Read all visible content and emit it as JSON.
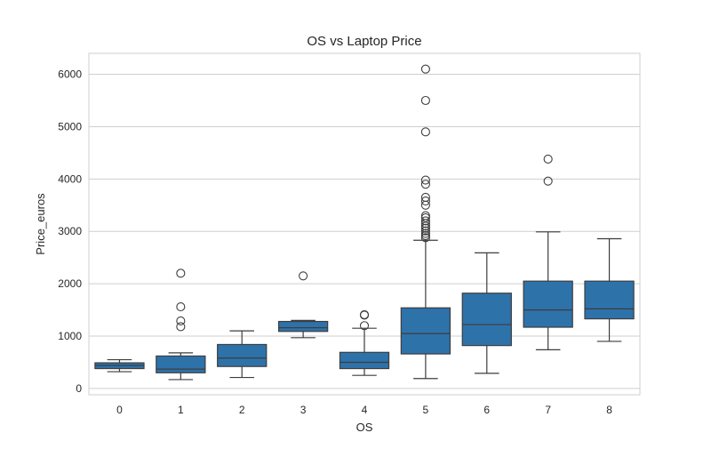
{
  "chart_data": {
    "type": "box",
    "title": "OS vs Laptop Price",
    "xlabel": "OS",
    "ylabel": "Price_euros",
    "categories": [
      "0",
      "1",
      "2",
      "3",
      "4",
      "5",
      "6",
      "7",
      "8"
    ],
    "ylim": [
      -120,
      6400
    ],
    "yticks": [
      0,
      1000,
      2000,
      3000,
      4000,
      5000,
      6000
    ],
    "grid": true,
    "box_color": "#2e72aa",
    "line_color": "#3d3d3d",
    "grid_color": "#cfcfcf",
    "boxes": [
      {
        "category": "0",
        "whisker_low": 320,
        "q1": 380,
        "median": 440,
        "q3": 490,
        "whisker_high": 550,
        "outliers": []
      },
      {
        "category": "1",
        "whisker_low": 170,
        "q1": 300,
        "median": 370,
        "q3": 620,
        "whisker_high": 680,
        "outliers": [
          1180,
          1290,
          1560,
          2200
        ]
      },
      {
        "category": "2",
        "whisker_low": 210,
        "q1": 420,
        "median": 580,
        "q3": 840,
        "whisker_high": 1100,
        "outliers": []
      },
      {
        "category": "3",
        "whisker_low": 970,
        "q1": 1090,
        "median": 1160,
        "q3": 1280,
        "whisker_high": 1300,
        "outliers": [
          2150
        ]
      },
      {
        "category": "4",
        "whisker_low": 250,
        "q1": 380,
        "median": 500,
        "q3": 690,
        "whisker_high": 1150,
        "outliers": [
          1200,
          1400,
          1410
        ]
      },
      {
        "category": "5",
        "whisker_low": 190,
        "q1": 660,
        "median": 1050,
        "q3": 1540,
        "whisker_high": 2830,
        "outliers": [
          2880,
          2920,
          2960,
          3010,
          3060,
          3100,
          3150,
          3200,
          3260,
          3300,
          3500,
          3580,
          3650,
          3900,
          3980,
          4900,
          5500,
          6100
        ]
      },
      {
        "category": "6",
        "whisker_low": 290,
        "q1": 820,
        "median": 1220,
        "q3": 1820,
        "whisker_high": 2590,
        "outliers": []
      },
      {
        "category": "7",
        "whisker_low": 740,
        "q1": 1170,
        "median": 1500,
        "q3": 2050,
        "whisker_high": 2990,
        "outliers": [
          3960,
          4380
        ]
      },
      {
        "category": "8",
        "whisker_low": 900,
        "q1": 1330,
        "median": 1520,
        "q3": 2050,
        "whisker_high": 2860,
        "outliers": []
      }
    ]
  }
}
